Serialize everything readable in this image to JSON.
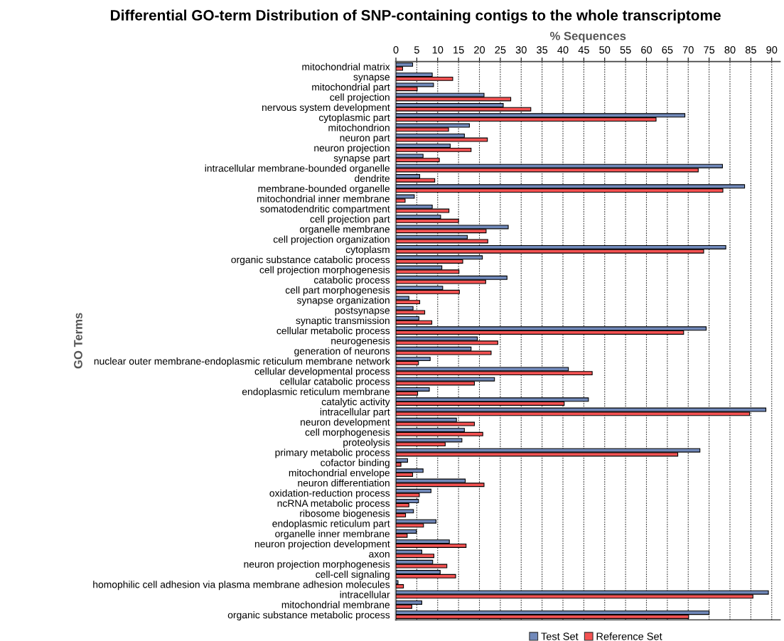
{
  "chart_data": {
    "type": "bar",
    "orientation": "horizontal",
    "title": "Differential GO-term Distribution of SNP-containing contigs to the whole transcriptome",
    "xlabel": "% Sequences",
    "ylabel": "GO Terms",
    "categories": [
      "mitochondrial matrix",
      "synapse",
      "mitochondrial part",
      "cell projection",
      "nervous system development",
      "cytoplasmic part",
      "mitochondrion",
      "neuron part",
      "neuron projection",
      "synapse part",
      "intracellular membrane-bounded organelle",
      "dendrite",
      "membrane-bounded organelle",
      "mitochondrial inner membrane",
      "somatodendritic compartment",
      "cell projection part",
      "organelle membrane",
      "cell projection organization",
      "cytoplasm",
      "organic substance catabolic process",
      "cell projection morphogenesis",
      "catabolic process",
      "cell part morphogenesis",
      "synapse organization",
      "postsynapse",
      "synaptic transmission",
      "cellular metabolic process",
      "neurogenesis",
      "generation of neurons",
      "nuclear outer membrane-endoplasmic reticulum membrane network",
      "cellular developmental process",
      "cellular catabolic process",
      "endoplasmic reticulum membrane",
      "catalytic activity",
      "intracellular part",
      "neuron development",
      "cell morphogenesis",
      "proteolysis",
      "primary metabolic process",
      "cofactor binding",
      "mitochondrial envelope",
      "neuron differentiation",
      "oxidation-reduction process",
      "ncRNA metabolic process",
      "ribosome biogenesis",
      "endoplasmic reticulum part",
      "organelle inner membrane",
      "neuron projection development",
      "axon",
      "neuron projection morphogenesis",
      "cell-cell signaling",
      "homophilic cell adhesion via plasma membrane adhesion molecules",
      "intracellular",
      "mitochondrial membrane",
      "organic substance metabolic process"
    ],
    "series": [
      {
        "name": "Test Set",
        "color": "#7189ba",
        "values": [
          4.0,
          8.7,
          9.0,
          21.1,
          25.7,
          69.2,
          17.6,
          16.4,
          13.0,
          6.5,
          78.2,
          5.7,
          83.5,
          4.4,
          8.7,
          10.7,
          26.9,
          17.1,
          79.0,
          20.7,
          11.0,
          26.6,
          11.2,
          3.1,
          4.1,
          5.5,
          74.3,
          19.5,
          18.0,
          8.2,
          41.3,
          23.6,
          8.0,
          46.1,
          88.6,
          14.5,
          16.4,
          15.8,
          72.8,
          2.8,
          6.5,
          16.6,
          8.4,
          5.4,
          4.2,
          9.6,
          4.9,
          12.8,
          6.2,
          8.8,
          10.6,
          0.5,
          89.2,
          6.2,
          75.0
        ]
      },
      {
        "name": "Reference Set",
        "color": "#f45252",
        "values": [
          1.6,
          13.6,
          5.1,
          27.5,
          32.3,
          62.3,
          12.6,
          21.9,
          18.0,
          10.4,
          72.4,
          9.3,
          78.3,
          2.2,
          12.7,
          15.0,
          21.6,
          22.0,
          73.7,
          16.0,
          15.1,
          21.5,
          15.2,
          5.7,
          6.9,
          8.6,
          68.9,
          24.4,
          22.8,
          5.4,
          47.0,
          18.8,
          5.2,
          40.3,
          84.7,
          18.8,
          20.8,
          11.8,
          67.5,
          1.2,
          4.0,
          21.1,
          5.6,
          3.1,
          2.3,
          6.6,
          2.7,
          16.8,
          9.1,
          12.2,
          14.3,
          1.8,
          85.5,
          3.8,
          70.1
        ]
      }
    ],
    "xlim": [
      0,
      92
    ],
    "xticks": [
      0,
      5,
      10,
      15,
      20,
      25,
      30,
      35,
      40,
      45,
      50,
      55,
      60,
      65,
      70,
      75,
      80,
      85,
      90
    ],
    "grid": "x",
    "legend": "bottom"
  }
}
